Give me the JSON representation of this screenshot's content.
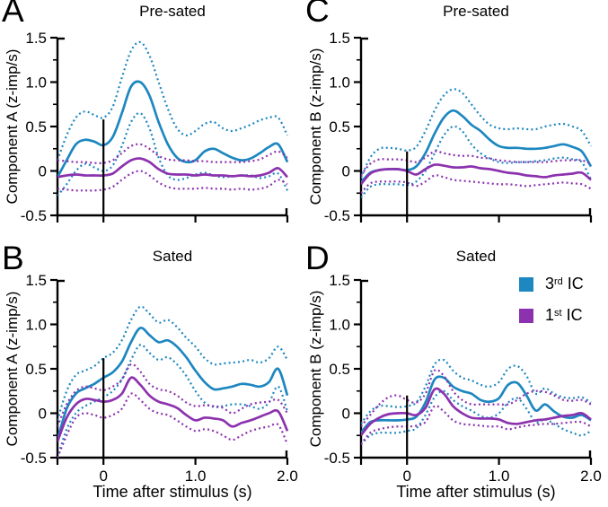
{
  "colors": {
    "blue": "#1d87c0",
    "purple": "#8c32ae",
    "axis": "#000000",
    "background": "#ffffff"
  },
  "legend": {
    "position": "top-right-of-panel-D",
    "items": [
      {
        "base": "3",
        "sup": "rd",
        "rest": " IC",
        "color_key": "blue"
      },
      {
        "base": "1",
        "sup": "st",
        "rest": " IC",
        "color_key": "purple"
      }
    ]
  },
  "axes": {
    "x_label": "Time after stimulus (s)",
    "xlim": [
      -0.5,
      2.0
    ],
    "ylim": [
      -0.5,
      1.5
    ],
    "x_ticks": [
      {
        "v": -0.5,
        "label": ""
      },
      {
        "v": 0,
        "label": "0"
      },
      {
        "v": 1.0,
        "label": "1.0"
      },
      {
        "v": 2.0,
        "label": "2.0"
      }
    ],
    "y_ticks": [
      {
        "v": -0.5,
        "label": "-0.5"
      },
      {
        "v": 0,
        "label": "0"
      },
      {
        "v": 0.5,
        "label": "0.5"
      },
      {
        "v": 1.0,
        "label": "1.0"
      },
      {
        "v": 1.5,
        "label": "1.5"
      }
    ],
    "y_minor_ticks": [
      -0.25,
      0.25,
      0.75,
      1.25
    ],
    "grid": false,
    "x_tick_labels_shown_on": [
      "B",
      "D"
    ]
  },
  "chart_data": [
    {
      "type": "line",
      "letter": "A",
      "title": "Pre-sated",
      "y_label": "Component A (z-imp/s)",
      "stimulus_line_x": 0,
      "stimulus_line_top": 0.58,
      "x": [
        -0.5,
        -0.4,
        -0.3,
        -0.2,
        -0.1,
        0,
        0.1,
        0.2,
        0.3,
        0.4,
        0.5,
        0.6,
        0.7,
        0.8,
        0.9,
        1.0,
        1.1,
        1.2,
        1.3,
        1.4,
        1.5,
        1.6,
        1.7,
        1.8,
        1.9,
        2.0
      ],
      "series": [
        {
          "name": "3rd IC upper bound",
          "color": "blue",
          "style": "dotted",
          "values": [
            0.12,
            0.4,
            0.6,
            0.67,
            0.63,
            0.6,
            0.72,
            1.05,
            1.35,
            1.45,
            1.3,
            1.0,
            0.7,
            0.48,
            0.4,
            0.45,
            0.53,
            0.55,
            0.48,
            0.45,
            0.48,
            0.52,
            0.57,
            0.6,
            0.6,
            0.4
          ]
        },
        {
          "name": "3rd IC lower bound",
          "color": "blue",
          "style": "dotted",
          "values": [
            -0.28,
            -0.15,
            0.0,
            0.08,
            0.04,
            0.0,
            0.06,
            0.28,
            0.55,
            0.65,
            0.48,
            0.15,
            -0.05,
            -0.1,
            -0.08,
            -0.04,
            -0.02,
            -0.05,
            -0.07,
            -0.06,
            -0.05,
            -0.05,
            -0.08,
            -0.06,
            -0.03,
            -0.22
          ]
        },
        {
          "name": "3rd IC mean",
          "color": "blue",
          "style": "solid",
          "values": [
            -0.07,
            0.12,
            0.3,
            0.35,
            0.33,
            0.29,
            0.38,
            0.65,
            0.95,
            1.0,
            0.85,
            0.55,
            0.3,
            0.15,
            0.1,
            0.12,
            0.22,
            0.25,
            0.2,
            0.15,
            0.12,
            0.14,
            0.2,
            0.27,
            0.3,
            0.1
          ]
        },
        {
          "name": "1st IC upper bound",
          "color": "purple",
          "style": "dotted",
          "values": [
            0.12,
            0.11,
            0.1,
            0.1,
            0.09,
            0.09,
            0.12,
            0.2,
            0.28,
            0.3,
            0.25,
            0.17,
            0.13,
            0.12,
            0.12,
            0.11,
            0.11,
            0.1,
            0.1,
            0.1,
            0.1,
            0.11,
            0.13,
            0.18,
            0.22,
            0.15
          ]
        },
        {
          "name": "1st IC lower bound",
          "color": "purple",
          "style": "dotted",
          "values": [
            -0.2,
            -0.21,
            -0.22,
            -0.22,
            -0.22,
            -0.21,
            -0.18,
            -0.1,
            -0.03,
            0.0,
            -0.05,
            -0.13,
            -0.18,
            -0.2,
            -0.2,
            -0.2,
            -0.19,
            -0.2,
            -0.2,
            -0.21,
            -0.2,
            -0.21,
            -0.2,
            -0.17,
            -0.1,
            -0.15
          ]
        },
        {
          "name": "1st IC mean",
          "color": "purple",
          "style": "solid",
          "values": [
            -0.07,
            -0.05,
            -0.04,
            -0.05,
            -0.05,
            -0.05,
            -0.03,
            0.05,
            0.12,
            0.14,
            0.1,
            0.02,
            -0.03,
            -0.04,
            -0.04,
            -0.05,
            -0.04,
            -0.05,
            -0.05,
            -0.06,
            -0.05,
            -0.06,
            -0.05,
            -0.02,
            0.03,
            -0.07
          ]
        }
      ]
    },
    {
      "type": "line",
      "letter": "B",
      "title": "Sated",
      "y_label": "Component A (z-imp/s)",
      "stimulus_line_x": 0,
      "stimulus_line_top": 0.62,
      "x": [
        -0.5,
        -0.4,
        -0.3,
        -0.2,
        -0.1,
        0,
        0.1,
        0.2,
        0.3,
        0.4,
        0.5,
        0.6,
        0.7,
        0.8,
        0.9,
        1.0,
        1.1,
        1.2,
        1.3,
        1.4,
        1.5,
        1.6,
        1.7,
        1.8,
        1.9,
        2.0
      ],
      "series": [
        {
          "name": "3rd IC upper bound",
          "color": "blue",
          "style": "dotted",
          "values": [
            -0.08,
            0.25,
            0.43,
            0.48,
            0.53,
            0.62,
            0.68,
            0.82,
            1.05,
            1.2,
            1.12,
            1.02,
            1.05,
            0.97,
            0.85,
            0.75,
            0.62,
            0.55,
            0.56,
            0.57,
            0.58,
            0.6,
            0.57,
            0.62,
            0.75,
            0.6
          ]
        },
        {
          "name": "3rd IC lower bound",
          "color": "blue",
          "style": "dotted",
          "values": [
            -0.5,
            -0.18,
            0.0,
            0.08,
            0.13,
            0.18,
            0.25,
            0.38,
            0.6,
            0.77,
            0.68,
            0.6,
            0.63,
            0.55,
            0.42,
            0.25,
            0.12,
            0.07,
            0.08,
            0.1,
            0.1,
            0.08,
            0.05,
            0.12,
            0.3,
            0.02
          ]
        },
        {
          "name": "3rd IC mean",
          "color": "blue",
          "style": "solid",
          "values": [
            -0.3,
            0.05,
            0.22,
            0.28,
            0.33,
            0.4,
            0.46,
            0.58,
            0.8,
            0.96,
            0.88,
            0.8,
            0.82,
            0.75,
            0.63,
            0.48,
            0.35,
            0.27,
            0.28,
            0.3,
            0.33,
            0.32,
            0.3,
            0.35,
            0.5,
            0.2
          ]
        },
        {
          "name": "1st IC upper bound",
          "color": "purple",
          "style": "dotted",
          "values": [
            -0.15,
            0.1,
            0.25,
            0.3,
            0.28,
            0.26,
            0.3,
            0.38,
            0.55,
            0.47,
            0.33,
            0.27,
            0.25,
            0.2,
            0.12,
            0.08,
            0.09,
            0.08,
            0.06,
            0.0,
            0.05,
            0.1,
            0.12,
            0.13,
            0.15,
            0.0
          ]
        },
        {
          "name": "1st IC lower bound",
          "color": "purple",
          "style": "dotted",
          "values": [
            -0.5,
            -0.25,
            -0.05,
            0.0,
            -0.02,
            -0.05,
            -0.02,
            0.05,
            0.22,
            0.15,
            0.05,
            0.0,
            -0.02,
            -0.08,
            -0.15,
            -0.2,
            -0.18,
            -0.2,
            -0.25,
            -0.3,
            -0.25,
            -0.2,
            -0.17,
            -0.15,
            -0.13,
            -0.35
          ]
        },
        {
          "name": "1st IC mean",
          "color": "purple",
          "style": "solid",
          "values": [
            -0.32,
            -0.05,
            0.1,
            0.16,
            0.15,
            0.13,
            0.15,
            0.22,
            0.4,
            0.32,
            0.2,
            0.13,
            0.1,
            0.06,
            -0.02,
            -0.08,
            -0.05,
            -0.06,
            -0.08,
            -0.15,
            -0.11,
            -0.08,
            -0.04,
            0.0,
            0.02,
            -0.2
          ]
        }
      ]
    },
    {
      "type": "line",
      "letter": "C",
      "title": "Pre-sated",
      "y_label": "Component B (z-imp/s)",
      "stimulus_line_x": 0,
      "stimulus_line_top": 0.22,
      "x": [
        -0.5,
        -0.4,
        -0.3,
        -0.2,
        -0.1,
        0,
        0.1,
        0.2,
        0.3,
        0.4,
        0.5,
        0.6,
        0.7,
        0.8,
        0.9,
        1.0,
        1.1,
        1.2,
        1.3,
        1.4,
        1.5,
        1.6,
        1.7,
        1.8,
        1.9,
        2.0
      ],
      "series": [
        {
          "name": "3rd IC upper bound",
          "color": "blue",
          "style": "dotted",
          "values": [
            -0.08,
            0.15,
            0.25,
            0.26,
            0.25,
            0.23,
            0.27,
            0.45,
            0.68,
            0.85,
            0.92,
            0.88,
            0.75,
            0.62,
            0.52,
            0.48,
            0.47,
            0.48,
            0.47,
            0.47,
            0.5,
            0.52,
            0.53,
            0.5,
            0.45,
            0.28
          ]
        },
        {
          "name": "3rd IC lower bound",
          "color": "blue",
          "style": "dotted",
          "values": [
            -0.3,
            -0.18,
            -0.15,
            -0.15,
            -0.15,
            -0.16,
            -0.12,
            0.0,
            0.2,
            0.4,
            0.5,
            0.45,
            0.3,
            0.2,
            0.14,
            0.1,
            0.09,
            0.1,
            0.1,
            0.11,
            0.12,
            0.14,
            0.15,
            0.13,
            0.1,
            -0.1
          ]
        },
        {
          "name": "3rd IC mean",
          "color": "blue",
          "style": "solid",
          "values": [
            -0.13,
            -0.02,
            0.01,
            0.02,
            0.02,
            0.01,
            0.05,
            0.2,
            0.42,
            0.6,
            0.68,
            0.62,
            0.52,
            0.45,
            0.35,
            0.28,
            0.26,
            0.26,
            0.25,
            0.25,
            0.26,
            0.28,
            0.3,
            0.27,
            0.22,
            0.05
          ]
        },
        {
          "name": "1st IC upper bound",
          "color": "purple",
          "style": "dotted",
          "values": [
            -0.05,
            0.08,
            0.13,
            0.13,
            0.13,
            0.12,
            0.1,
            0.15,
            0.22,
            0.2,
            0.18,
            0.17,
            0.17,
            0.15,
            0.14,
            0.12,
            0.11,
            0.1,
            0.1,
            0.1,
            0.1,
            0.11,
            0.12,
            0.12,
            0.12,
            0.08
          ]
        },
        {
          "name": "1st IC lower bound",
          "color": "purple",
          "style": "dotted",
          "values": [
            -0.25,
            -0.14,
            -0.12,
            -0.12,
            -0.12,
            -0.13,
            -0.17,
            -0.12,
            -0.05,
            -0.07,
            -0.1,
            -0.11,
            -0.12,
            -0.13,
            -0.14,
            -0.15,
            -0.15,
            -0.16,
            -0.17,
            -0.16,
            -0.15,
            -0.14,
            -0.13,
            -0.14,
            -0.15,
            -0.2
          ]
        },
        {
          "name": "1st IC mean",
          "color": "purple",
          "style": "solid",
          "values": [
            -0.15,
            -0.03,
            0.01,
            0.02,
            0.02,
            0.0,
            -0.04,
            0.02,
            0.07,
            0.06,
            0.04,
            0.04,
            0.05,
            0.03,
            0.02,
            0.0,
            -0.02,
            -0.03,
            -0.05,
            -0.06,
            -0.07,
            -0.05,
            -0.04,
            -0.03,
            -0.02,
            -0.1
          ]
        }
      ]
    },
    {
      "type": "line",
      "letter": "D",
      "title": "Sated",
      "y_label": "Component B (z-imp/s)",
      "stimulus_line_x": 0,
      "stimulus_line_top": 0.2,
      "x": [
        -0.5,
        -0.4,
        -0.3,
        -0.2,
        -0.1,
        0,
        0.1,
        0.2,
        0.3,
        0.4,
        0.5,
        0.6,
        0.7,
        0.8,
        0.9,
        1.0,
        1.1,
        1.2,
        1.3,
        1.4,
        1.5,
        1.6,
        1.7,
        1.8,
        1.9,
        2.0
      ],
      "series": [
        {
          "name": "3rd IC upper bound",
          "color": "blue",
          "style": "dotted",
          "values": [
            -0.12,
            0.02,
            0.08,
            0.08,
            0.07,
            0.08,
            0.12,
            0.3,
            0.55,
            0.6,
            0.48,
            0.4,
            0.37,
            0.32,
            0.3,
            0.35,
            0.5,
            0.53,
            0.42,
            0.22,
            0.28,
            0.22,
            0.18,
            0.17,
            0.18,
            0.12
          ]
        },
        {
          "name": "3rd IC lower bound",
          "color": "blue",
          "style": "dotted",
          "values": [
            -0.35,
            -0.25,
            -0.22,
            -0.22,
            -0.22,
            -0.2,
            -0.17,
            -0.02,
            0.18,
            0.25,
            0.15,
            0.08,
            0.03,
            -0.03,
            -0.05,
            0.0,
            0.12,
            0.17,
            0.05,
            -0.1,
            -0.07,
            -0.12,
            -0.18,
            -0.22,
            -0.25,
            -0.2
          ]
        },
        {
          "name": "3rd IC mean",
          "color": "blue",
          "style": "solid",
          "values": [
            -0.22,
            -0.1,
            -0.08,
            -0.08,
            -0.08,
            -0.07,
            -0.04,
            0.12,
            0.38,
            0.4,
            0.3,
            0.25,
            0.22,
            0.15,
            0.13,
            0.17,
            0.32,
            0.34,
            0.2,
            0.03,
            0.1,
            0.02,
            -0.04,
            -0.05,
            -0.02,
            -0.08
          ]
        },
        {
          "name": "1st IC upper bound",
          "color": "purple",
          "style": "dotted",
          "values": [
            -0.15,
            -0.02,
            0.1,
            0.18,
            0.2,
            0.15,
            0.12,
            0.22,
            0.48,
            0.42,
            0.25,
            0.15,
            0.1,
            0.1,
            0.1,
            0.1,
            0.1,
            0.15,
            0.22,
            0.25,
            0.24,
            0.2,
            0.15,
            0.14,
            0.15,
            0.1
          ]
        },
        {
          "name": "1st IC lower bound",
          "color": "purple",
          "style": "dotted",
          "values": [
            -0.35,
            -0.22,
            -0.18,
            -0.16,
            -0.15,
            -0.15,
            -0.14,
            -0.1,
            0.08,
            0.02,
            -0.08,
            -0.12,
            -0.13,
            -0.14,
            -0.15,
            -0.15,
            -0.18,
            -0.16,
            -0.14,
            -0.13,
            -0.12,
            -0.12,
            -0.11,
            -0.1,
            -0.1,
            -0.15
          ]
        },
        {
          "name": "1st IC mean",
          "color": "purple",
          "style": "solid",
          "values": [
            -0.25,
            -0.12,
            -0.05,
            -0.01,
            0.0,
            0.0,
            -0.02,
            0.06,
            0.27,
            0.22,
            0.08,
            0.0,
            -0.05,
            -0.06,
            -0.06,
            -0.07,
            -0.11,
            -0.12,
            -0.1,
            -0.08,
            -0.07,
            -0.05,
            -0.03,
            -0.02,
            0.0,
            -0.07
          ]
        }
      ]
    }
  ]
}
